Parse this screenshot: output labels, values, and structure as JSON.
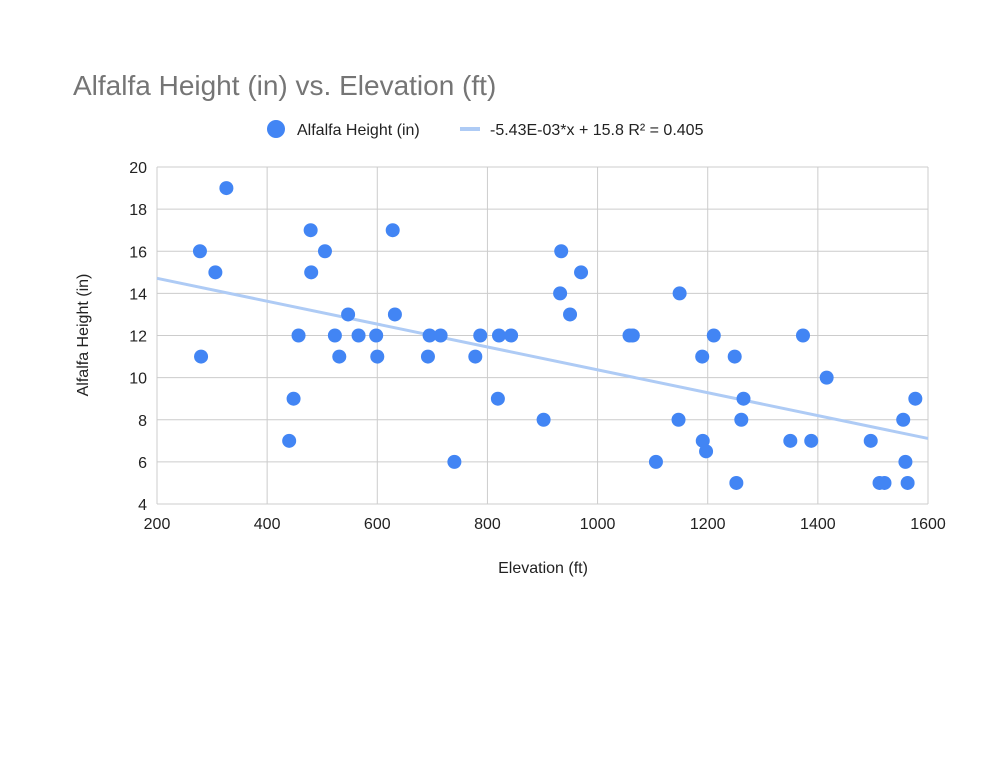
{
  "chart_data": {
    "type": "scatter",
    "title": "Alfalfa Height (in) vs. Elevation (ft)",
    "xlabel": "Elevation (ft)",
    "ylabel": "Alfalfa Height (in)",
    "xlim": [
      200,
      1600
    ],
    "ylim": [
      4,
      20
    ],
    "x_ticks": [
      200,
      400,
      600,
      800,
      1000,
      1200,
      1400,
      1600
    ],
    "y_ticks": [
      4,
      6,
      8,
      10,
      12,
      14,
      16,
      18,
      20
    ],
    "grid": true,
    "legend_placement": "top",
    "series": [
      {
        "name": "Alfalfa Height (in)",
        "color": "#4285f4",
        "points": [
          [
            278,
            16
          ],
          [
            280,
            11
          ],
          [
            306,
            15
          ],
          [
            326,
            19
          ],
          [
            440,
            7
          ],
          [
            448,
            9
          ],
          [
            457,
            12
          ],
          [
            479,
            17
          ],
          [
            480,
            15
          ],
          [
            505,
            16
          ],
          [
            523,
            12
          ],
          [
            531,
            11
          ],
          [
            547,
            13
          ],
          [
            566,
            12
          ],
          [
            598,
            12
          ],
          [
            600,
            11
          ],
          [
            628,
            17
          ],
          [
            632,
            13
          ],
          [
            692,
            11
          ],
          [
            695,
            12
          ],
          [
            715,
            12
          ],
          [
            740,
            6
          ],
          [
            778,
            11
          ],
          [
            787,
            12
          ],
          [
            819,
            9
          ],
          [
            821,
            12
          ],
          [
            843,
            12
          ],
          [
            902,
            8
          ],
          [
            932,
            14
          ],
          [
            934,
            16
          ],
          [
            950,
            13
          ],
          [
            970,
            15
          ],
          [
            1058,
            12
          ],
          [
            1064,
            12
          ],
          [
            1106,
            6
          ],
          [
            1147,
            8
          ],
          [
            1149,
            14
          ],
          [
            1190,
            11
          ],
          [
            1191,
            7
          ],
          [
            1197,
            6.5
          ],
          [
            1211,
            12
          ],
          [
            1249,
            11
          ],
          [
            1252,
            5
          ],
          [
            1261,
            8
          ],
          [
            1265,
            9
          ],
          [
            1350,
            7
          ],
          [
            1373,
            12
          ],
          [
            1388,
            7
          ],
          [
            1416,
            10
          ],
          [
            1496,
            7
          ],
          [
            1512,
            5
          ],
          [
            1521,
            5
          ],
          [
            1555,
            8
          ],
          [
            1559,
            6
          ],
          [
            1563,
            5
          ],
          [
            1577,
            9
          ]
        ]
      },
      {
        "name": "-5.43E-03*x + 15.8 R² = 0.405",
        "kind": "trendline",
        "color": "#aecbf5",
        "slope": -0.00543,
        "intercept": 15.8
      }
    ]
  }
}
